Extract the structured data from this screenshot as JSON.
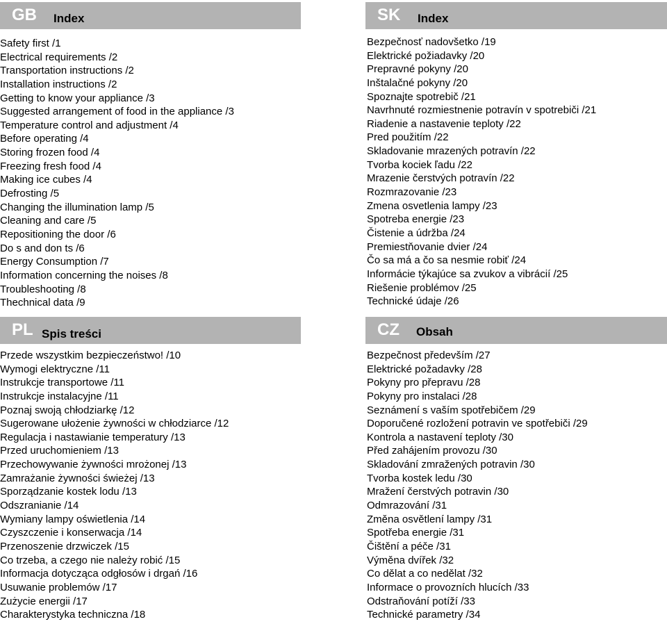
{
  "sections": {
    "gb": {
      "code": "GB",
      "heading": "Index",
      "items": [
        "Safety first /1",
        "Electrical requirements /2",
        "Transportation instructions /2",
        "Installation instructions /2",
        "Getting to know your appliance /3",
        "Suggested arrangement of food in the appliance /3",
        "Temperature control and adjustment /4",
        "Before operating /4",
        "Storing frozen food /4",
        "Freezing fresh food /4",
        "Making ice cubes /4",
        "Defrosting /5",
        "Changing the illumination lamp /5",
        "Cleaning and care /5",
        "Repositioning the door /6",
        "Do s and don ts /6",
        "Energy Consumption /7",
        "Information concerning the noises /8",
        "Troubleshooting /8",
        "Thechnical data /9"
      ]
    },
    "sk": {
      "code": "SK",
      "heading": "Index",
      "items": [
        "Bezpečnosť nadovšetko /19",
        "Elektrické požiadavky /20",
        "Prepravné pokyny /20",
        "Inštalačné pokyny /20",
        "Spoznajte spotrebič /21",
        "Navrhnuté rozmiestnenie potravín v spotrebiči /21",
        "Riadenie a nastavenie teploty /22",
        "Pred použitím /22",
        "Skladovanie mrazených potravín /22",
        "Tvorba kociek ľadu /22",
        "Mrazenie čerstvých potravín /22",
        "Rozmrazovanie /23",
        "Zmena osvetlenia lampy /23",
        "Spotreba energie /23",
        "Čistenie a údržba /24",
        "Premiestňovanie dvier /24",
        "Čo sa má a čo sa nesmie robiť /24",
        "Informácie týkajúce sa zvukov a vibrácií /25",
        "Riešenie problémov /25",
        "Technické údaje /26"
      ]
    },
    "pl": {
      "code": "PL",
      "heading": "Spis treści",
      "items": [
        "Przede wszystkim bezpieczeństwo! /10",
        "Wymogi elektryczne /11",
        "Instrukcje transportowe /11",
        "Instrukcje instalacyjne /11",
        "Poznaj swoją chłodziarkę /12",
        "Sugerowane ułożenie żywności w chłodziarce /12",
        "Regulacja i nastawianie temperatury /13",
        "Przed uruchomieniem /13",
        "Przechowywanie żywności mrożonej /13",
        "Zamrażanie żywności świeżej /13",
        "Sporządzanie kostek lodu /13",
        "Odszranianie /14",
        "Wymiany lampy oświetlenia /14",
        "Czyszczenie i konserwacja /14",
        "Przenoszenie drzwiczek /15",
        "Co trzeba, a czego nie należy robić /15",
        "Informacja dotycząca odgłosów i drgań /16",
        "Usuwanie problemów /17",
        "Zużycie energii /17",
        "Charakterystyka techniczna /18"
      ]
    },
    "cz": {
      "code": "CZ",
      "heading": "Obsah",
      "items": [
        "Bezpečnost především /27",
        "Elektrické požadavky /28",
        "Pokyny pro přepravu /28",
        "Pokyny pro instalaci /28",
        "Seznámení s vaším spotřebičem /29",
        "Doporučené rozložení potravin ve spotřebiči /29",
        "Kontrola a nastavení teploty /30",
        "Před zahájením provozu /30",
        "Skladování zmražených potravin /30",
        "Tvorba kostek ledu /30",
        "Mražení čerstvých potravin /30",
        "Odmrazování /31",
        "Změna osvětlení lampy /31",
        "Spotřeba energie /31",
        "Čištění a péče /31",
        "Výměna dvířek /32",
        "Co dělat a co nedělat /32",
        "Informace o provozních hlucích /33",
        "Odstraňování potíží /33",
        "Technické parametry /34"
      ]
    }
  }
}
